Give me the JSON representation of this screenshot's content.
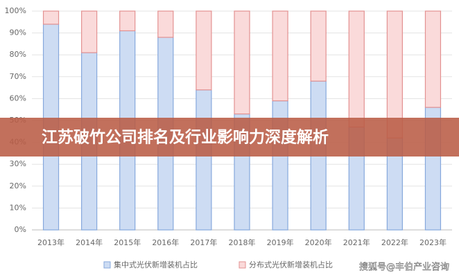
{
  "chart_data": {
    "type": "stacked_bar",
    "categories": [
      "2013年",
      "2014年",
      "2015年",
      "2016年",
      "2017年",
      "2018年",
      "2019年",
      "2020年",
      "2021年",
      "2022年",
      "2023年"
    ],
    "series": [
      {
        "name": "集中式光伏新增装机占比",
        "color": "#cddcf3",
        "stroke": "#86a8dc",
        "values": [
          94,
          81,
          91,
          88,
          64,
          53,
          59,
          68,
          47,
          42,
          56
        ]
      },
      {
        "name": "分布式光伏新增装机占比",
        "color": "#fadada",
        "stroke": "#e39191",
        "values": [
          6,
          19,
          9,
          12,
          36,
          47,
          41,
          32,
          53,
          58,
          44
        ]
      }
    ],
    "ylim": [
      0,
      100
    ],
    "yticks": [
      {
        "value": 0,
        "label": "0%"
      },
      {
        "value": 10,
        "label": "10%"
      },
      {
        "value": 20,
        "label": "20%"
      },
      {
        "value": 30,
        "label": "30%"
      },
      {
        "value": 40,
        "label": "40%"
      },
      {
        "value": 50,
        "label": "50%"
      },
      {
        "value": 60,
        "label": "60%"
      },
      {
        "value": 70,
        "label": "70%"
      },
      {
        "value": 80,
        "label": "80%"
      },
      {
        "value": 90,
        "label": "90%"
      },
      {
        "value": 100,
        "label": "100%"
      }
    ],
    "grid": true
  },
  "banner": {
    "title": "江苏破竹公司排名及行业影响力深度解析"
  },
  "watermark": "搜狐号@丰伯产业咨询"
}
